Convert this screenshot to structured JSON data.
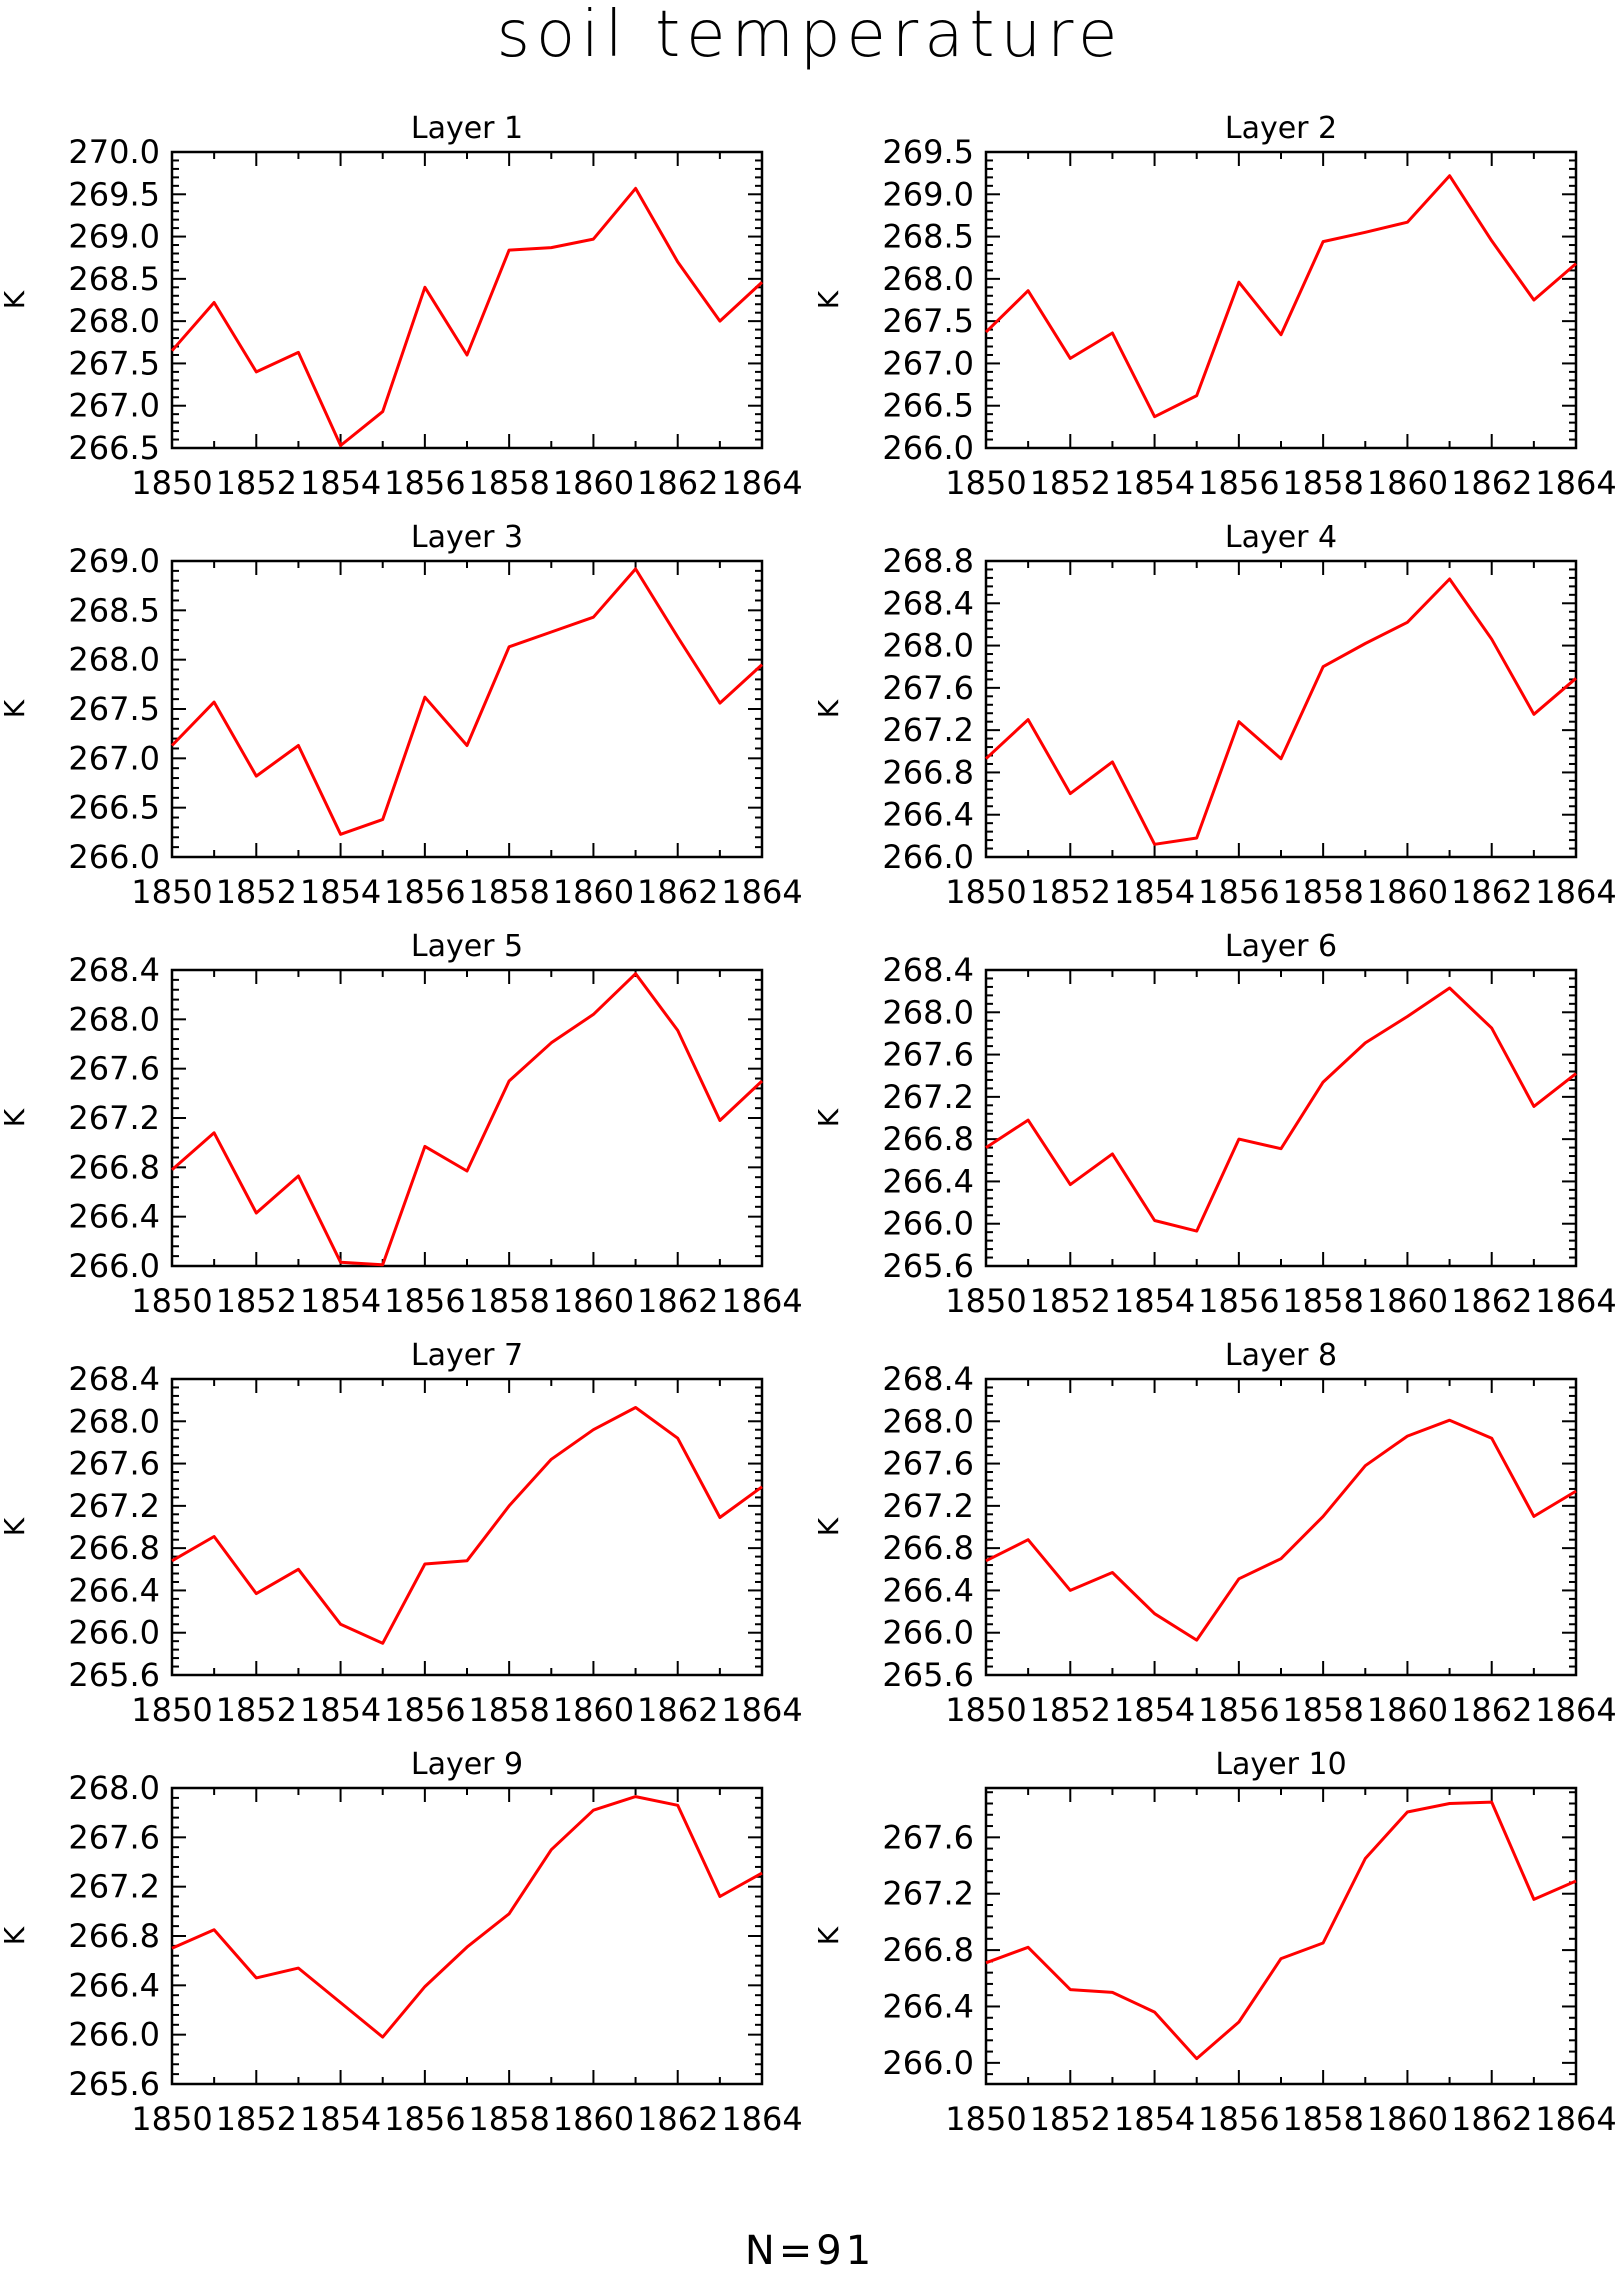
{
  "title": "soil temperature",
  "footer": "N=91",
  "line_color": "#ff0000",
  "chart_data": [
    {
      "type": "line",
      "title": "Layer 1",
      "ylabel": "K",
      "x": [
        1850,
        1851,
        1852,
        1853,
        1854,
        1855,
        1856,
        1857,
        1858,
        1859,
        1860,
        1861,
        1862,
        1863,
        1864
      ],
      "y": [
        267.65,
        268.22,
        267.4,
        267.63,
        266.53,
        266.93,
        268.4,
        267.6,
        268.84,
        268.87,
        268.97,
        269.57,
        268.7,
        268.0,
        268.46
      ],
      "ylim": [
        266.5,
        270.0
      ],
      "yticks": [
        "270.0",
        "269.5",
        "269.0",
        "268.5",
        "268.0",
        "267.5",
        "267.0",
        "266.5"
      ],
      "xticks": [
        "1850",
        "1852",
        "1854",
        "1856",
        "1858",
        "1860",
        "1862",
        "1864"
      ]
    },
    {
      "type": "line",
      "title": "Layer 2",
      "ylabel": "K",
      "x": [
        1850,
        1851,
        1852,
        1853,
        1854,
        1855,
        1856,
        1857,
        1858,
        1859,
        1860,
        1861,
        1862,
        1863,
        1864
      ],
      "y": [
        267.37,
        267.86,
        267.06,
        267.36,
        266.37,
        266.62,
        267.96,
        267.34,
        268.44,
        268.55,
        268.67,
        269.22,
        268.45,
        267.75,
        268.18
      ],
      "ylim": [
        266.0,
        269.5
      ],
      "yticks": [
        "269.5",
        "269.0",
        "268.5",
        "268.0",
        "267.5",
        "267.0",
        "266.5",
        "266.0"
      ],
      "xticks": [
        "1850",
        "1852",
        "1854",
        "1856",
        "1858",
        "1860",
        "1862",
        "1864"
      ]
    },
    {
      "type": "line",
      "title": "Layer 3",
      "ylabel": "K",
      "x": [
        1850,
        1851,
        1852,
        1853,
        1854,
        1855,
        1856,
        1857,
        1858,
        1859,
        1860,
        1861,
        1862,
        1863,
        1864
      ],
      "y": [
        267.13,
        267.57,
        266.82,
        267.13,
        266.23,
        266.38,
        267.62,
        267.13,
        268.13,
        268.28,
        268.43,
        268.92,
        268.23,
        267.56,
        267.95
      ],
      "ylim": [
        266.0,
        269.0
      ],
      "yticks": [
        "269.0",
        "268.5",
        "268.0",
        "267.5",
        "267.0",
        "266.5",
        "266.0"
      ],
      "xticks": [
        "1850",
        "1852",
        "1854",
        "1856",
        "1858",
        "1860",
        "1862",
        "1864"
      ]
    },
    {
      "type": "line",
      "title": "Layer 4",
      "ylabel": "K",
      "x": [
        1850,
        1851,
        1852,
        1853,
        1854,
        1855,
        1856,
        1857,
        1858,
        1859,
        1860,
        1861,
        1862,
        1863,
        1864
      ],
      "y": [
        266.93,
        267.3,
        266.6,
        266.9,
        266.12,
        266.18,
        267.28,
        266.93,
        267.8,
        268.02,
        268.22,
        268.63,
        268.06,
        267.35,
        267.69
      ],
      "ylim": [
        266.0,
        268.8
      ],
      "yticks": [
        "268.8",
        "268.4",
        "268.0",
        "267.6",
        "267.2",
        "266.8",
        "266.4",
        "266.0"
      ],
      "xticks": [
        "1850",
        "1852",
        "1854",
        "1856",
        "1858",
        "1860",
        "1862",
        "1864"
      ]
    },
    {
      "type": "line",
      "title": "Layer 5",
      "ylabel": "K",
      "x": [
        1850,
        1851,
        1852,
        1853,
        1854,
        1855,
        1856,
        1857,
        1858,
        1859,
        1860,
        1861,
        1862,
        1863,
        1864
      ],
      "y": [
        266.78,
        267.08,
        266.43,
        266.73,
        266.03,
        266.01,
        266.97,
        266.77,
        267.5,
        267.81,
        268.04,
        268.37,
        267.91,
        267.18,
        267.5
      ],
      "ylim": [
        266.0,
        268.4
      ],
      "yticks": [
        "268.4",
        "268.0",
        "267.6",
        "267.2",
        "266.8",
        "266.4",
        "266.0"
      ],
      "xticks": [
        "1850",
        "1852",
        "1854",
        "1856",
        "1858",
        "1860",
        "1862",
        "1864"
      ]
    },
    {
      "type": "line",
      "title": "Layer 6",
      "ylabel": "K",
      "x": [
        1850,
        1851,
        1852,
        1853,
        1854,
        1855,
        1856,
        1857,
        1858,
        1859,
        1860,
        1861,
        1862,
        1863,
        1864
      ],
      "y": [
        266.72,
        266.98,
        266.37,
        266.66,
        266.03,
        265.93,
        266.8,
        266.71,
        267.34,
        267.71,
        267.96,
        268.23,
        267.85,
        267.11,
        267.42
      ],
      "ylim": [
        265.6,
        268.4
      ],
      "yticks": [
        "268.4",
        "268.0",
        "267.6",
        "267.2",
        "266.8",
        "266.4",
        "266.0",
        "265.6"
      ],
      "xticks": [
        "1850",
        "1852",
        "1854",
        "1856",
        "1858",
        "1860",
        "1862",
        "1864"
      ]
    },
    {
      "type": "line",
      "title": "Layer 7",
      "ylabel": "K",
      "x": [
        1850,
        1851,
        1852,
        1853,
        1854,
        1855,
        1856,
        1857,
        1858,
        1859,
        1860,
        1861,
        1862,
        1863,
        1864
      ],
      "y": [
        266.68,
        266.91,
        266.37,
        266.6,
        266.08,
        265.9,
        266.65,
        266.68,
        267.2,
        267.64,
        267.92,
        268.13,
        267.84,
        267.09,
        267.38
      ],
      "ylim": [
        265.6,
        268.4
      ],
      "yticks": [
        "268.4",
        "268.0",
        "267.6",
        "267.2",
        "266.8",
        "266.4",
        "266.0",
        "265.6"
      ],
      "xticks": [
        "1850",
        "1852",
        "1854",
        "1856",
        "1858",
        "1860",
        "1862",
        "1864"
      ]
    },
    {
      "type": "line",
      "title": "Layer 8",
      "ylabel": "K",
      "x": [
        1850,
        1851,
        1852,
        1853,
        1854,
        1855,
        1856,
        1857,
        1858,
        1859,
        1860,
        1861,
        1862,
        1863,
        1864
      ],
      "y": [
        266.68,
        266.88,
        266.4,
        266.57,
        266.18,
        265.93,
        266.51,
        266.7,
        267.1,
        267.58,
        267.86,
        268.01,
        267.84,
        267.1,
        267.34
      ],
      "ylim": [
        265.6,
        268.4
      ],
      "yticks": [
        "268.4",
        "268.0",
        "267.6",
        "267.2",
        "266.8",
        "266.4",
        "266.0",
        "265.6"
      ],
      "xticks": [
        "1850",
        "1852",
        "1854",
        "1856",
        "1858",
        "1860",
        "1862",
        "1864"
      ]
    },
    {
      "type": "line",
      "title": "Layer 9",
      "ylabel": "K",
      "x": [
        1850,
        1851,
        1852,
        1853,
        1854,
        1855,
        1856,
        1857,
        1858,
        1859,
        1860,
        1861,
        1862,
        1863,
        1864
      ],
      "y": [
        266.7,
        266.85,
        266.46,
        266.54,
        266.26,
        265.98,
        266.39,
        266.71,
        266.98,
        267.5,
        267.82,
        267.93,
        267.86,
        267.12,
        267.31
      ],
      "ylim": [
        265.6,
        268.0
      ],
      "yticks": [
        "268.0",
        "267.6",
        "267.2",
        "266.8",
        "266.4",
        "266.0",
        "265.6"
      ],
      "xticks": [
        "1850",
        "1852",
        "1854",
        "1856",
        "1858",
        "1860",
        "1862",
        "1864"
      ]
    },
    {
      "type": "line",
      "title": "Layer 10",
      "ylabel": "K",
      "x": [
        1850,
        1851,
        1852,
        1853,
        1854,
        1855,
        1856,
        1857,
        1858,
        1859,
        1860,
        1861,
        1862,
        1863,
        1864
      ],
      "y": [
        266.71,
        266.82,
        266.52,
        266.5,
        266.36,
        266.03,
        266.29,
        266.74,
        266.85,
        267.45,
        267.78,
        267.84,
        267.85,
        267.16,
        267.29
      ],
      "ylim": [
        265.85,
        267.95
      ],
      "yticks": [
        "267.6",
        "267.2",
        "266.8",
        "266.4",
        "266.0"
      ],
      "xticks": [
        "1850",
        "1852",
        "1854",
        "1856",
        "1858",
        "1860",
        "1862",
        "1864"
      ]
    }
  ]
}
